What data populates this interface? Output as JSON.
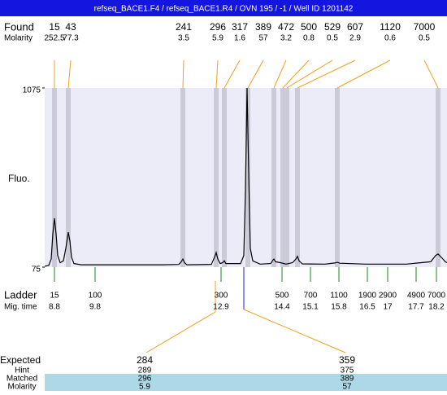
{
  "chart_data": {
    "type": "electropherogram",
    "title": "refseq_BACE1.F4 / refseq_BACE1.R4 / OVN 195 / -1 / Well ID 1201142",
    "y_label": "Fluo.",
    "ylim": [
      75,
      1075
    ],
    "yticks": [
      75,
      1075
    ],
    "xlim": [
      8.56,
      18.46
    ],
    "trace": {
      "color": "#000000",
      "x": [
        8.56,
        8.66,
        8.72,
        8.76,
        8.8,
        8.84,
        8.88,
        8.94,
        9.02,
        9.08,
        9.14,
        9.18,
        9.22,
        9.28,
        9.46,
        10.46,
        11.46,
        11.86,
        11.92,
        11.96,
        12.0,
        12.06,
        12.66,
        12.74,
        12.78,
        12.82,
        12.88,
        12.94,
        12.98,
        13.02,
        13.38,
        13.46,
        13.5,
        13.54,
        13.58,
        13.62,
        13.68,
        13.86,
        14.12,
        14.18,
        14.2,
        14.24,
        14.36,
        14.5,
        14.66,
        14.74,
        14.78,
        14.82,
        14.9,
        15.46,
        15.7,
        15.76,
        15.82,
        16.46,
        17.46,
        18.06,
        18.18,
        18.24,
        18.32,
        18.42,
        18.46
      ],
      "y": [
        80,
        85,
        120,
        260,
        348,
        260,
        140,
        100,
        110,
        180,
        270,
        220,
        130,
        95,
        88,
        88,
        88,
        90,
        105,
        120,
        100,
        88,
        90,
        130,
        157,
        120,
        95,
        100,
        110,
        95,
        95,
        140,
        500,
        1075,
        600,
        180,
        110,
        92,
        95,
        115,
        120,
        105,
        100,
        92,
        100,
        120,
        135,
        110,
        93,
        92,
        98,
        102,
        97,
        92,
        92,
        105,
        140,
        148,
        130,
        105,
        100
      ]
    },
    "found": {
      "label": "Found",
      "sub_label": "Molarity",
      "sizes": [
        15,
        43,
        241,
        296,
        317,
        389,
        472,
        500,
        529,
        607,
        1120,
        7000
      ],
      "molarity": [
        252.5,
        77.3,
        3.5,
        5.9,
        1.6,
        57,
        3.2,
        0.8,
        0.5,
        2.9,
        0.6,
        0.5
      ]
    },
    "ladder": {
      "label": "Ladder",
      "sub_label": "Mig. time",
      "sizes": [
        15,
        100,
        300,
        500,
        700,
        1100,
        1900,
        2900,
        4900,
        7000
      ],
      "mig_time": [
        8.8,
        9.8,
        12.9,
        14.4,
        15.1,
        15.8,
        16.5,
        17,
        17.7,
        18.2
      ]
    },
    "expected": {
      "label": "Expected",
      "values": [
        284,
        359
      ],
      "rows": [
        {
          "label": "Hint",
          "values": [
            289,
            375
          ]
        },
        {
          "label": "Matched",
          "values": [
            296,
            389
          ]
        },
        {
          "label": "Molarity",
          "values": [
            5.9,
            57
          ]
        }
      ]
    }
  }
}
